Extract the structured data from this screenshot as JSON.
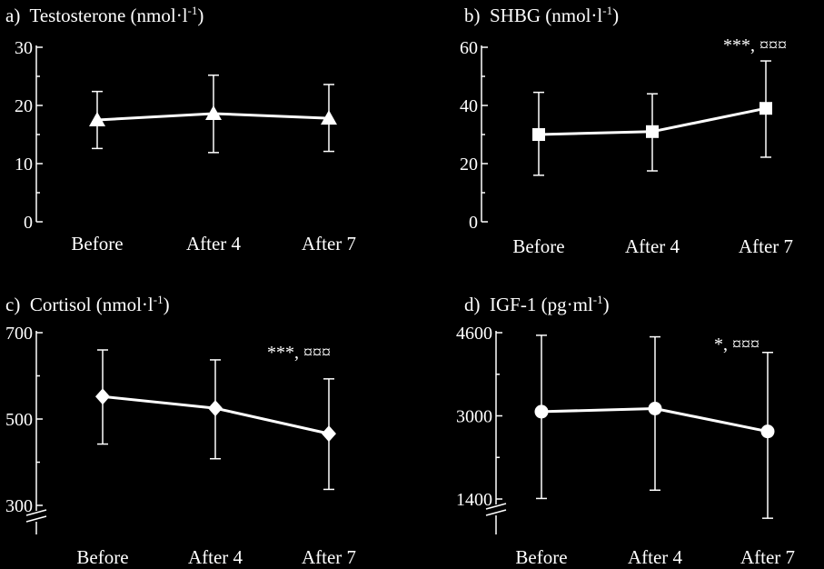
{
  "chart_data": [
    {
      "type": "line",
      "panel_label": "a)",
      "title": "Testosterone (nmol·l",
      "title_sup": "-1",
      "title_close": ")",
      "categories": [
        "Before",
        "After 4",
        "After 7"
      ],
      "values": [
        17.5,
        18.6,
        17.8
      ],
      "error_low": [
        12.6,
        11.9,
        12.1
      ],
      "error_high": [
        22.4,
        25.2,
        23.6
      ],
      "marker": "triangle",
      "ylim": [
        0,
        30
      ],
      "yticks": [
        "0",
        "10",
        "20",
        "30"
      ],
      "ytick_values": [
        0,
        10,
        20,
        30
      ],
      "axis_break": false,
      "annotation": ""
    },
    {
      "type": "line",
      "panel_label": "b)",
      "title": "SHBG (nmol·l",
      "title_sup": "-1",
      "title_close": ")",
      "categories": [
        "Before",
        "After 4",
        "After 7"
      ],
      "values": [
        30,
        31,
        39
      ],
      "error_low": [
        16,
        17.5,
        22.2
      ],
      "error_high": [
        44.5,
        44,
        55.3
      ],
      "marker": "square",
      "ylim": [
        0,
        60
      ],
      "yticks": [
        "0",
        "20",
        "40",
        "60"
      ],
      "ytick_values": [
        0,
        20,
        40,
        60
      ],
      "axis_break": false,
      "annotation": "***, ¤¤¤"
    },
    {
      "type": "line",
      "panel_label": "c)",
      "title": "Cortisol (nmol·l",
      "title_sup": "-1",
      "title_close": ")",
      "categories": [
        "Before",
        "After 4",
        "After 7"
      ],
      "values": [
        552,
        525,
        466
      ],
      "error_low": [
        442,
        408,
        337
      ],
      "error_high": [
        660,
        637,
        593
      ],
      "marker": "diamond",
      "ylim": [
        300,
        700
      ],
      "yticks": [
        "300",
        "500",
        "700"
      ],
      "ytick_values": [
        300,
        500,
        700
      ],
      "axis_break": true,
      "annotation": "***, ¤¤¤"
    },
    {
      "type": "line",
      "panel_label": "d)",
      "title": "IGF-1 (pg·ml",
      "title_sup": "-1",
      "title_close": ")",
      "categories": [
        "Before",
        "After 4",
        "After 7"
      ],
      "values": [
        3080,
        3140,
        2700
      ],
      "error_low": [
        1410,
        1570,
        1030
      ],
      "error_high": [
        4550,
        4520,
        4220
      ],
      "marker": "circle",
      "ylim": [
        1400,
        4600
      ],
      "yticks": [
        "1400",
        "3000",
        "4600"
      ],
      "ytick_values": [
        1400,
        3000,
        4600
      ],
      "axis_break": true,
      "annotation": "*, ¤¤¤"
    }
  ],
  "colors": {
    "background": "#000000",
    "foreground": "#ffffff"
  }
}
